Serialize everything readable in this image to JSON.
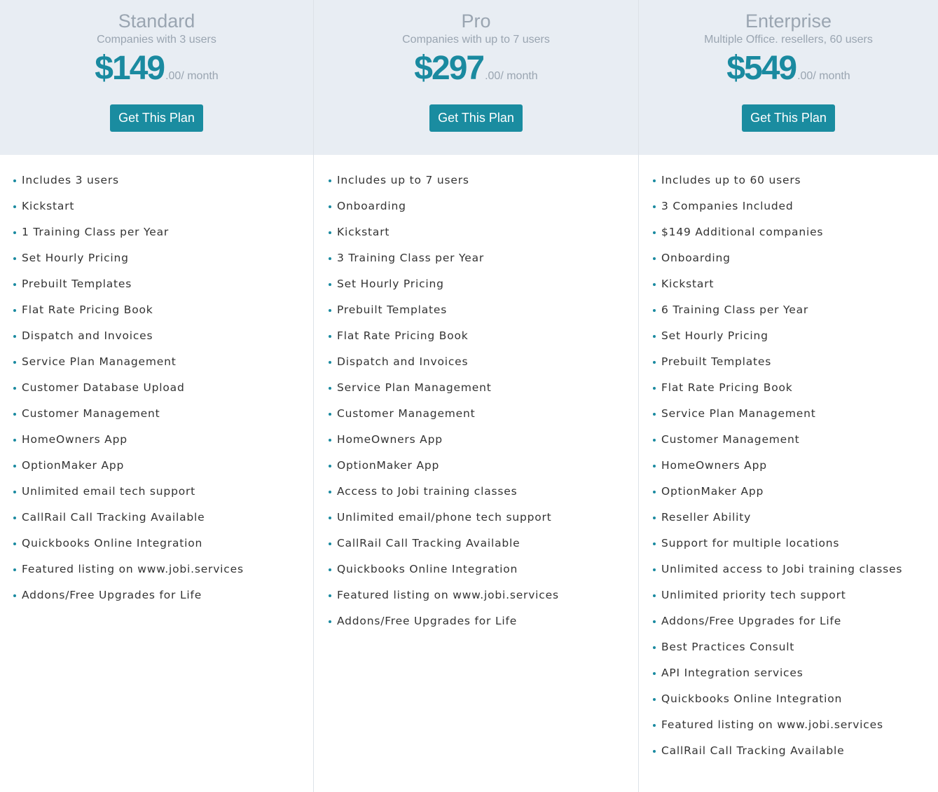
{
  "plans": [
    {
      "name": "Standard",
      "subtitle": "Companies with 3 users",
      "price": "$149",
      "price_suffix": ".00/ month",
      "button": "Get This Plan",
      "features": [
        "Includes 3 users",
        "Kickstart",
        "1 Training Class per Year",
        "Set Hourly Pricing",
        "Prebuilt Templates",
        "Flat Rate Pricing Book",
        "Dispatch and Invoices",
        "Service Plan Management",
        "Customer Database Upload",
        "Customer Management",
        "HomeOwners App",
        "OptionMaker App",
        "Unlimited email tech support",
        "CallRail Call Tracking Available",
        "Quickbooks Online Integration",
        "Featured listing on www.jobi.services",
        "Addons/Free Upgrades for Life"
      ]
    },
    {
      "name": "Pro",
      "subtitle": "Companies with up to 7 users",
      "price": "$297",
      "price_suffix": ".00/ month",
      "button": "Get This Plan",
      "features": [
        "Includes up to 7 users",
        "Onboarding",
        "Kickstart",
        "3 Training Class per Year",
        "Set Hourly Pricing",
        "Prebuilt Templates",
        "Flat Rate Pricing Book",
        "Dispatch and Invoices",
        "Service Plan Management",
        "Customer Management",
        "HomeOwners App",
        "OptionMaker App",
        "Access to Jobi training classes",
        "Unlimited email/phone tech support",
        "CallRail Call Tracking Available",
        "Quickbooks Online Integration",
        "Featured listing on www.jobi.services",
        "Addons/Free Upgrades for Life"
      ]
    },
    {
      "name": "Enterprise",
      "subtitle": "Multiple Office. resellers, 60 users",
      "price": "$549",
      "price_suffix": ".00/ month",
      "button": "Get This Plan",
      "features": [
        "Includes up to 60 users",
        "3 Companies Included",
        "$149 Additional companies",
        "Onboarding",
        "Kickstart",
        "6 Training Class per Year",
        "Set Hourly Pricing",
        "Prebuilt Templates",
        "Flat Rate Pricing Book",
        "Service Plan Management",
        "Customer Management",
        "HomeOwners App",
        "OptionMaker App",
        "Reseller Ability",
        "Support for multiple locations",
        "Unlimited access to Jobi training classes",
        "Unlimited priority tech support",
        "Addons/Free Upgrades for Life",
        "Best Practices Consult",
        "API Integration services",
        "Quickbooks Online Integration",
        "Featured listing on www.jobi.services",
        "CallRail Call Tracking Available"
      ]
    }
  ],
  "colors": {
    "accent": "#1a8ca0",
    "header_bg": "#e8edf3",
    "muted": "#9aa5b1"
  }
}
